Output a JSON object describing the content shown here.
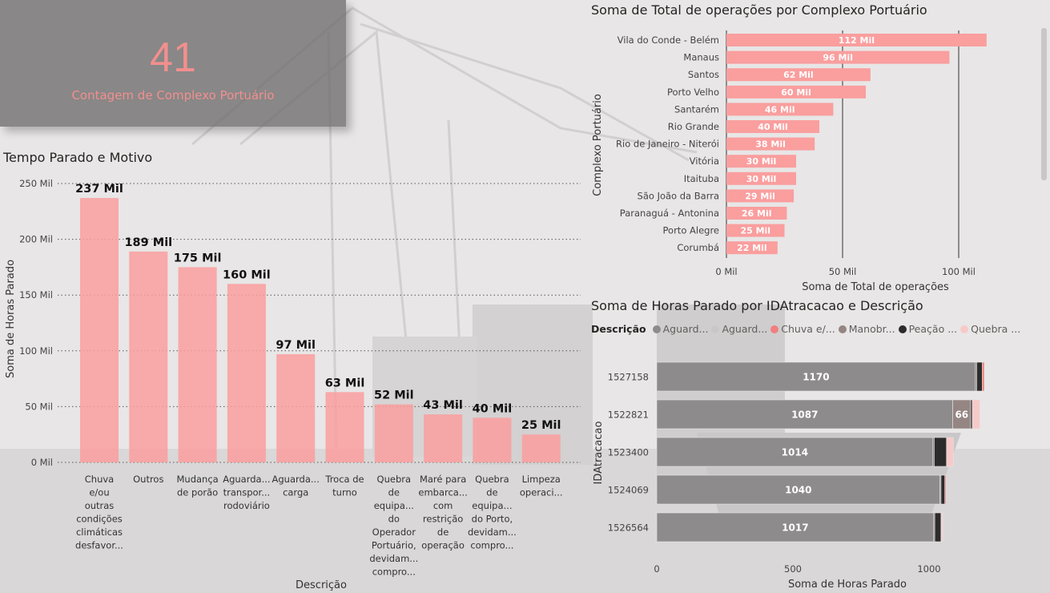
{
  "kpi": {
    "value": "41",
    "label": "Contagem de Complexo Portuário"
  },
  "chart_titles": {
    "left": "Tempo Parado e Motivo",
    "top_right": "Soma de Total de operações por Complexo Portuário",
    "bottom_right": "Soma de Horas Parado por IDAtracacao e Descrição"
  },
  "colors": {
    "bar_pink": "#fa9e9e",
    "gray_bar": "#8f8d8d",
    "kpi_bg": "#6e6c6c",
    "kpi_text": "#f28f8f"
  },
  "legend": {
    "title": "Descrição",
    "items": [
      {
        "label": "Aguard...",
        "color": "#8d8b8b"
      },
      {
        "label": "Aguard...",
        "color": "#c9c7c7"
      },
      {
        "label": "Chuva e/...",
        "color": "#f07f7f"
      },
      {
        "label": "Manobr...",
        "color": "#958583"
      },
      {
        "label": "Peação ...",
        "color": "#2c2c2c"
      },
      {
        "label": "Quebra ...",
        "color": "#f7caca"
      }
    ]
  },
  "chart_data": [
    {
      "type": "bar",
      "title": "Tempo Parado e Motivo",
      "xlabel": "Descrição",
      "ylabel": "Soma de Horas Parado",
      "ylim": [
        0,
        250000
      ],
      "yticks": [
        "0 Mil",
        "50 Mil",
        "100 Mil",
        "150 Mil",
        "200 Mil",
        "250 Mil"
      ],
      "grid": true,
      "categories": [
        [
          "Chuva",
          "e/ou",
          "outras",
          "condições",
          "climáticas",
          "desfavor..."
        ],
        [
          "Outros"
        ],
        [
          "Mudança",
          "de porão"
        ],
        [
          "Aguarda...",
          "transpor...",
          "rodoviário"
        ],
        [
          "Aguarda...",
          "carga"
        ],
        [
          "Troca de",
          "turno"
        ],
        [
          "Quebra",
          "de",
          "equipa...",
          "do",
          "Operador",
          "Portuário,",
          "devidam...",
          "compro..."
        ],
        [
          "Maré para",
          "embarca...",
          "com",
          "restrição",
          "de",
          "operação"
        ],
        [
          "Quebra",
          "de",
          "equipa...",
          "do Porto,",
          "devidam...",
          "compro..."
        ],
        [
          "Limpeza",
          "operaci..."
        ]
      ],
      "values": [
        237000,
        189000,
        175000,
        160000,
        97000,
        63000,
        52000,
        43000,
        40000,
        25000
      ],
      "labels": [
        "237 Mil",
        "189 Mil",
        "175 Mil",
        "160 Mil",
        "97 Mil",
        "63 Mil",
        "52 Mil",
        "43 Mil",
        "40 Mil",
        "25 Mil"
      ]
    },
    {
      "type": "bar",
      "orientation": "horizontal",
      "title": "Soma de Total de operações por Complexo Portuário",
      "xlabel": "Soma de Total de operações",
      "ylabel": "Complexo Portuário",
      "xlim": [
        0,
        120000
      ],
      "xticks": [
        "0 Mil",
        "50 Mil",
        "100 Mil"
      ],
      "categories": [
        "Vila do Conde - Belém",
        "Manaus",
        "Santos",
        "Porto Velho",
        "Santarém",
        "Rio Grande",
        "Rio de Janeiro - Niterói",
        "Vitória",
        "Itaituba",
        "São João da Barra",
        "Paranaguá - Antonina",
        "Porto Alegre",
        "Corumbá"
      ],
      "values": [
        112000,
        96000,
        62000,
        60000,
        46000,
        40000,
        38000,
        30000,
        30000,
        29000,
        26000,
        25000,
        22000
      ],
      "labels": [
        "112 Mil",
        "96 Mil",
        "62 Mil",
        "60 Mil",
        "46 Mil",
        "40 Mil",
        "38 Mil",
        "30 Mil",
        "30 Mil",
        "29 Mil",
        "26 Mil",
        "25 Mil",
        "22 Mil"
      ]
    },
    {
      "type": "bar",
      "orientation": "horizontal",
      "stacked": true,
      "title": "Soma de Horas Parado por IDAtracacao e Descrição",
      "xlabel": "Soma de Horas Parado",
      "ylabel": "IDAtracacao",
      "xlim": [
        0,
        1200
      ],
      "xticks": [
        "0",
        "500",
        "1000"
      ],
      "categories": [
        "1527158",
        "1522821",
        "1523400",
        "1524069",
        "1526564"
      ],
      "segments": [
        [
          {
            "value": 1170,
            "c": 0,
            "label": "1170"
          },
          {
            "value": 5,
            "c": 3
          },
          {
            "value": 20,
            "c": 4
          },
          {
            "value": 8,
            "c": 2
          }
        ],
        [
          {
            "value": 1087,
            "c": 0,
            "label": "1087"
          },
          {
            "value": 66,
            "c": 3,
            "label": "66"
          },
          {
            "value": 6,
            "c": 4
          },
          {
            "value": 28,
            "c": 5
          }
        ],
        [
          {
            "value": 1014,
            "c": 0,
            "label": "1014"
          },
          {
            "value": 5,
            "c": 3
          },
          {
            "value": 45,
            "c": 4
          },
          {
            "value": 25,
            "c": 5
          }
        ],
        [
          {
            "value": 1040,
            "c": 0,
            "label": "1040"
          },
          {
            "value": 4,
            "c": 3
          },
          {
            "value": 14,
            "c": 4
          },
          {
            "value": 4,
            "c": 2
          }
        ],
        [
          {
            "value": 1017,
            "c": 0,
            "label": "1017"
          },
          {
            "value": 4,
            "c": 3
          },
          {
            "value": 23,
            "c": 4
          },
          {
            "value": 6,
            "c": 5
          }
        ]
      ]
    }
  ]
}
